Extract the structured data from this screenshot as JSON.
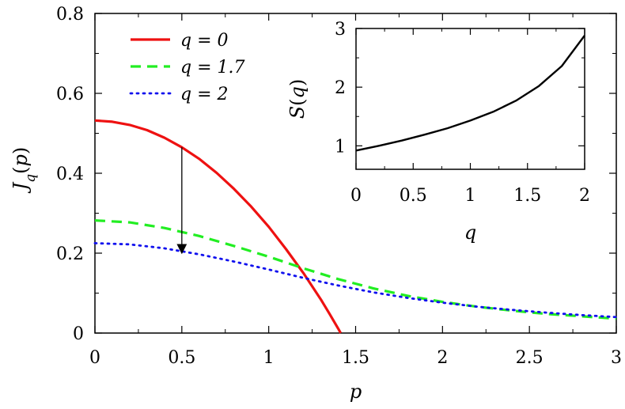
{
  "chart_data": [
    {
      "type": "line",
      "title": "",
      "xlabel": "p",
      "ylabel": "J_q(p)",
      "xlim": [
        0,
        3
      ],
      "ylim": [
        0,
        0.8
      ],
      "xticks": [
        0,
        0.5,
        1,
        1.5,
        2,
        2.5,
        3
      ],
      "yticks": [
        0,
        0.2,
        0.4,
        0.6,
        0.8
      ],
      "xtick_labels": [
        "0",
        "0.5",
        "1",
        "1.5",
        "2",
        "2.5",
        "3"
      ],
      "ytick_labels": [
        "0",
        "0.2",
        "0.4",
        "0.6",
        "0.8"
      ],
      "grid": false,
      "legend_position": "top-left",
      "series": [
        {
          "name": "q = 0",
          "style": "solid",
          "color": "#ee1111",
          "x": [
            0,
            0.1,
            0.2,
            0.3,
            0.4,
            0.5,
            0.6,
            0.7,
            0.8,
            0.9,
            1.0,
            1.1,
            1.2,
            1.3,
            1.35,
            1.4,
            1.414
          ],
          "y": [
            0.532,
            0.529,
            0.521,
            0.508,
            0.489,
            0.465,
            0.436,
            0.401,
            0.361,
            0.316,
            0.266,
            0.21,
            0.15,
            0.084,
            0.048,
            0.011,
            0.0
          ]
        },
        {
          "name": "q = 1.7",
          "style": "dashed",
          "color": "#22ee22",
          "x": [
            0,
            0.2,
            0.4,
            0.6,
            0.8,
            1.0,
            1.2,
            1.4,
            1.6,
            1.8,
            2.0,
            2.2,
            2.4,
            2.6,
            2.8,
            3.0
          ],
          "y": [
            0.282,
            0.277,
            0.263,
            0.243,
            0.218,
            0.191,
            0.162,
            0.135,
            0.112,
            0.093,
            0.078,
            0.066,
            0.056,
            0.048,
            0.042,
            0.036
          ]
        },
        {
          "name": "q = 2",
          "style": "dotted",
          "color": "#1111ee",
          "x": [
            0,
            0.2,
            0.4,
            0.6,
            0.8,
            1.0,
            1.2,
            1.4,
            1.6,
            1.8,
            2.0,
            2.2,
            2.4,
            2.6,
            2.8,
            3.0
          ],
          "y": [
            0.225,
            0.222,
            0.212,
            0.197,
            0.179,
            0.159,
            0.138,
            0.119,
            0.102,
            0.088,
            0.076,
            0.066,
            0.058,
            0.051,
            0.045,
            0.04
          ]
        }
      ],
      "annotations": [
        {
          "type": "arrow",
          "x_from": 0.5,
          "y_from": 0.465,
          "x_to": 0.5,
          "y_to": 0.2
        }
      ]
    },
    {
      "type": "line",
      "title": "",
      "xlabel": "q",
      "ylabel": "S(q)",
      "xlim": [
        0,
        2
      ],
      "ylim": [
        0.6,
        3
      ],
      "xticks": [
        0,
        0.5,
        1,
        1.5,
        2
      ],
      "yticks": [
        1,
        2,
        3
      ],
      "xtick_labels": [
        "0",
        "0.5",
        "1",
        "1.5",
        "2"
      ],
      "ytick_labels": [
        "1",
        "2",
        "3"
      ],
      "grid": false,
      "series": [
        {
          "style": "solid",
          "color": "#000000",
          "x": [
            0,
            0.2,
            0.4,
            0.6,
            0.8,
            1.0,
            1.2,
            1.4,
            1.6,
            1.8,
            2.0
          ],
          "y": [
            0.92,
            1.0,
            1.09,
            1.19,
            1.3,
            1.43,
            1.58,
            1.77,
            2.02,
            2.36,
            2.88
          ]
        }
      ]
    }
  ]
}
